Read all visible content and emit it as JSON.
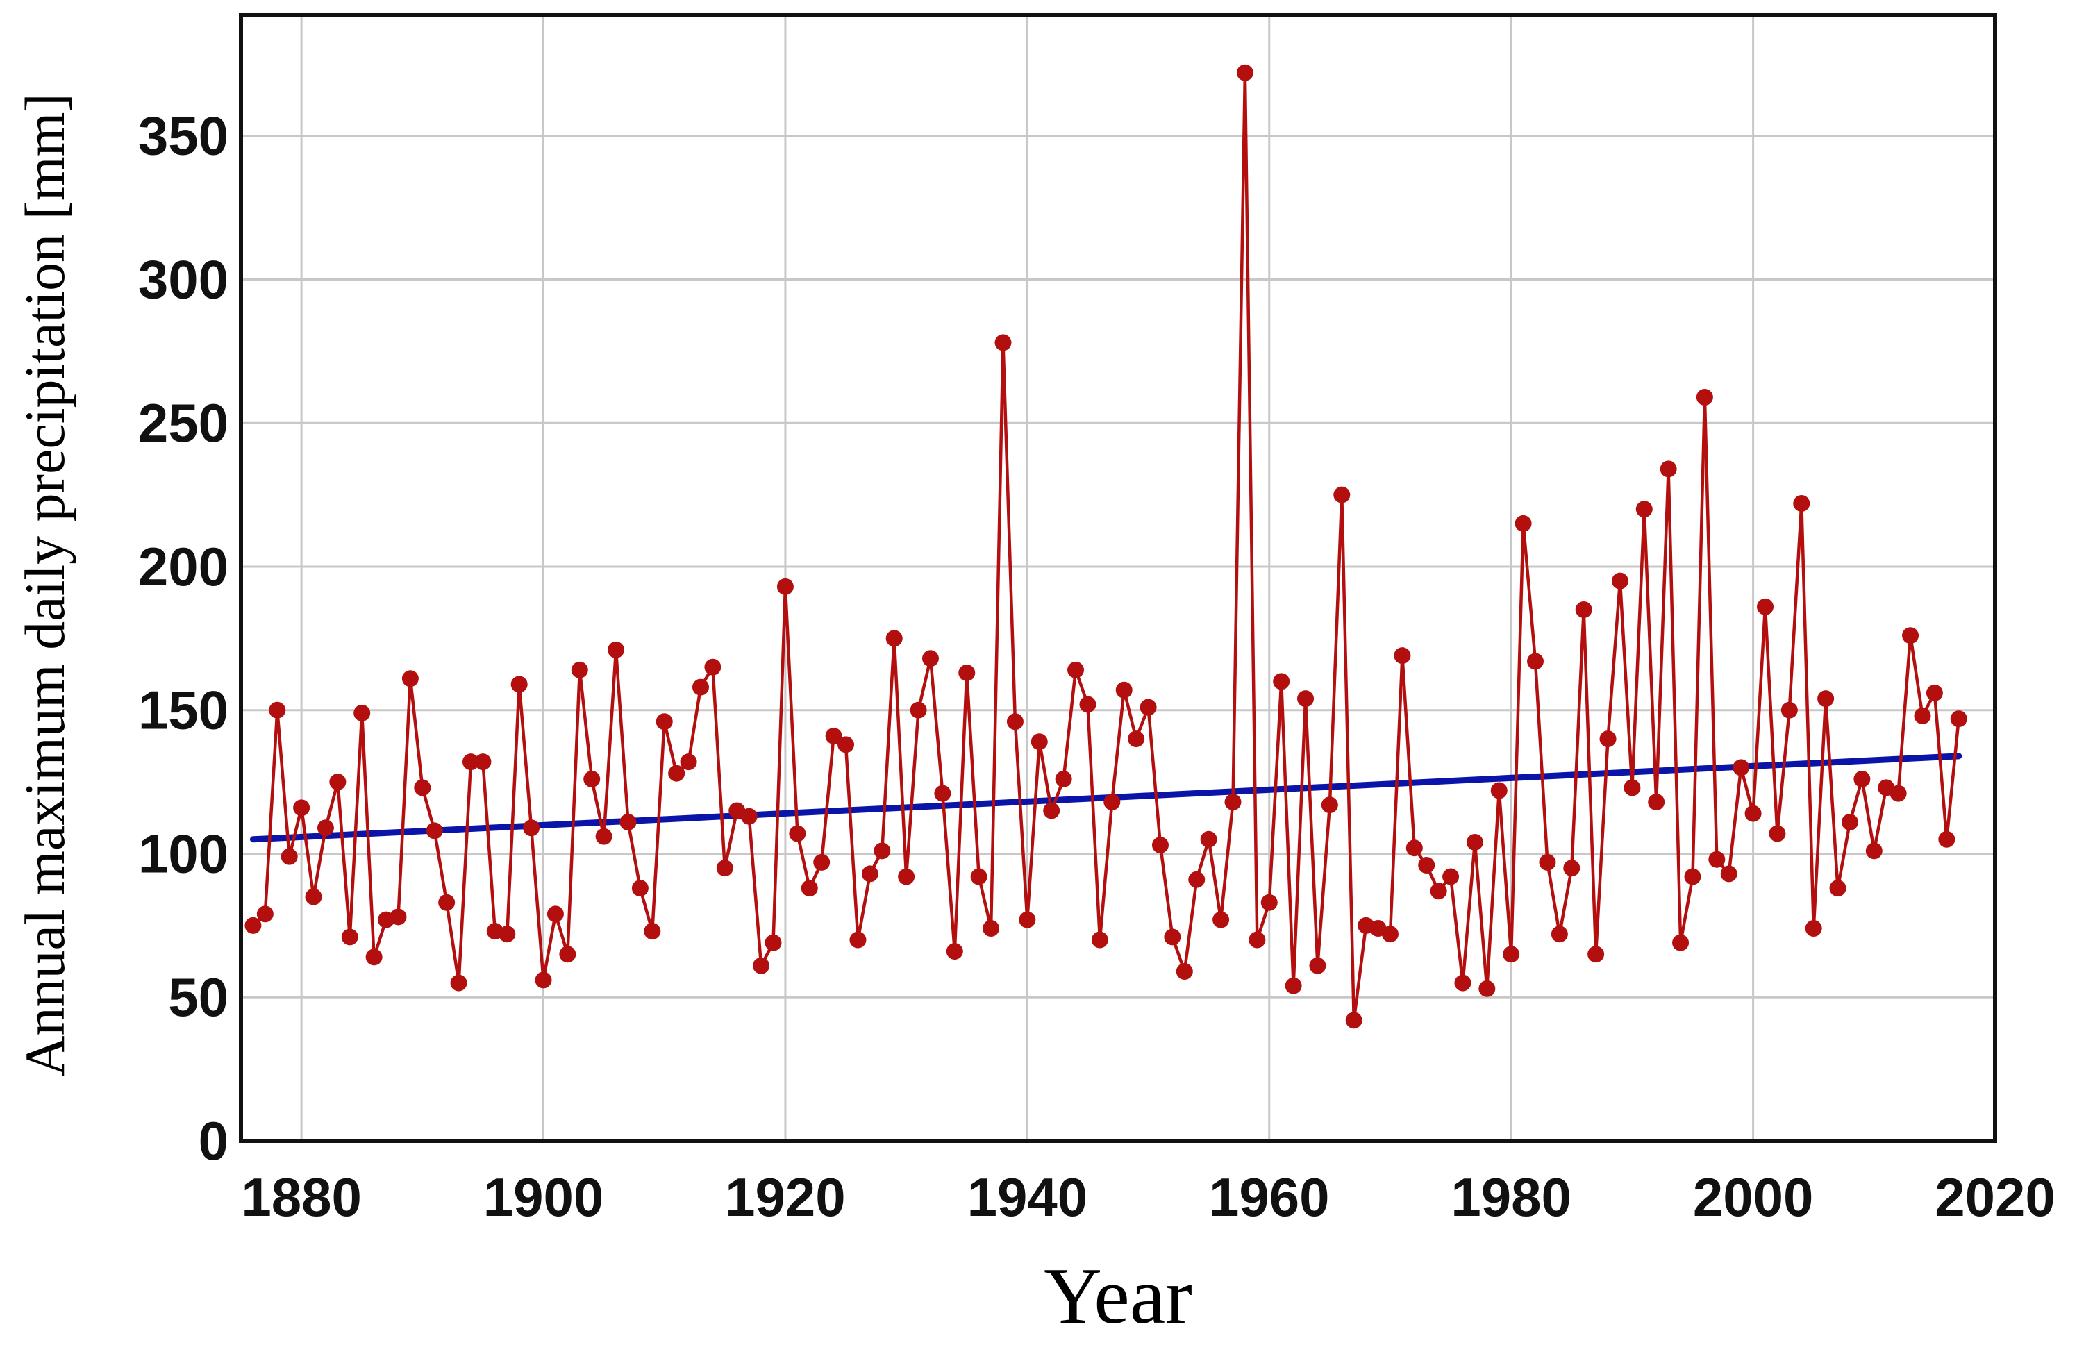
{
  "chart_data": {
    "type": "line",
    "title": "",
    "xlabel": "Year",
    "ylabel": "Annual maximum daily precipitation  [mm]",
    "xlim": [
      1875,
      2020
    ],
    "ylim": [
      0,
      392
    ],
    "x_ticks": [
      1880,
      1900,
      1920,
      1940,
      1960,
      1980,
      2000,
      2020
    ],
    "y_ticks": [
      0,
      50,
      100,
      150,
      200,
      250,
      300,
      350
    ],
    "grid": true,
    "legend": "none",
    "colors": {
      "series": "#b30f0f",
      "trend": "#0a14a8",
      "frame": "#111111",
      "grid": "#c8c8c8"
    },
    "series": [
      {
        "x": [
          1876,
          1877,
          1878,
          1879,
          1880,
          1881,
          1882,
          1883,
          1884,
          1885,
          1886,
          1887,
          1888,
          1889,
          1890,
          1891,
          1892,
          1893,
          1894,
          1895,
          1896,
          1897,
          1898,
          1899,
          1900,
          1901,
          1902,
          1903,
          1904,
          1905,
          1906,
          1907,
          1908,
          1909,
          1910,
          1911,
          1912,
          1913,
          1914,
          1915,
          1916,
          1917,
          1918,
          1919,
          1920,
          1921,
          1922,
          1923,
          1924,
          1925,
          1926,
          1927,
          1928,
          1929,
          1930,
          1931,
          1932,
          1933,
          1934,
          1935,
          1936,
          1937,
          1938,
          1939,
          1940,
          1941,
          1942,
          1943,
          1944,
          1945,
          1946,
          1947,
          1948,
          1949,
          1950,
          1951,
          1952,
          1953,
          1954,
          1955,
          1956,
          1957,
          1958,
          1959,
          1960,
          1961,
          1962,
          1963,
          1964,
          1965,
          1966,
          1967,
          1968,
          1969,
          1970,
          1971,
          1972,
          1973,
          1974,
          1975,
          1976,
          1977,
          1978,
          1979,
          1980,
          1981,
          1982,
          1983,
          1984,
          1985,
          1986,
          1987,
          1988,
          1989,
          1990,
          1991,
          1992,
          1993,
          1994,
          1995,
          1996,
          1997,
          1998,
          1999,
          2000,
          2001,
          2002,
          2003,
          2004,
          2005,
          2006,
          2007,
          2008,
          2009,
          2010,
          2011,
          2012,
          2013,
          2014,
          2015,
          2016,
          2017
        ],
        "y": [
          75,
          79,
          150,
          99,
          116,
          85,
          109,
          125,
          71,
          149,
          64,
          77,
          78,
          161,
          123,
          108,
          83,
          55,
          132,
          132,
          73,
          72,
          159,
          109,
          56,
          79,
          65,
          164,
          126,
          106,
          171,
          111,
          88,
          73,
          146,
          128,
          132,
          158,
          165,
          95,
          115,
          113,
          61,
          69,
          193,
          107,
          88,
          97,
          141,
          138,
          70,
          93,
          101,
          175,
          92,
          150,
          168,
          121,
          66,
          163,
          92,
          74,
          278,
          146,
          77,
          139,
          115,
          126,
          164,
          152,
          70,
          118,
          157,
          140,
          151,
          103,
          71,
          59,
          91,
          105,
          77,
          118,
          372,
          70,
          83,
          160,
          54,
          154,
          61,
          117,
          225,
          42,
          75,
          74,
          72,
          169,
          102,
          96,
          87,
          92,
          55,
          104,
          53,
          122,
          65,
          215,
          167,
          97,
          72,
          95,
          185,
          65,
          140,
          195,
          123,
          220,
          118,
          234,
          69,
          92,
          259,
          98,
          93,
          130,
          114,
          186,
          107,
          150,
          222,
          74,
          154,
          88,
          111,
          126,
          101,
          123,
          121,
          176,
          148,
          156,
          105,
          147
        ]
      }
    ],
    "trend_line": {
      "x": [
        1876,
        2017
      ],
      "y": [
        105,
        134
      ]
    }
  }
}
